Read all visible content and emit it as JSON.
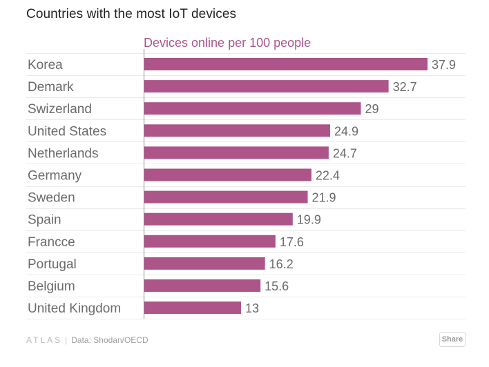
{
  "title": "Countries with the most IoT devices",
  "footer": {
    "logo_text": "ATLAS",
    "separator": "|",
    "source": "Data: Shodan/OECD",
    "share_label": "Share"
  },
  "colors": {
    "bar": "#ad5489",
    "series_label": "#ad5489",
    "category_text": "#6b6b6b",
    "value_text": "#6b6b6b",
    "grid": "#ebebeb",
    "axis": "#888888"
  },
  "chart_data": {
    "type": "bar",
    "orientation": "horizontal",
    "title": "Countries with the most IoT devices",
    "series_label": "Devices online per 100 people",
    "categories": [
      "Korea",
      "Demark",
      "Swizerland",
      "United States",
      "Netherlands",
      "Germany",
      "Sweden",
      "Spain",
      "Francce",
      "Portugal",
      "Belgium",
      "United Kingdom"
    ],
    "value_labels": [
      "37.9",
      "32.7",
      "29",
      "24.9",
      "24.7",
      "22.4",
      "21.9",
      "19.9",
      "17.6",
      "16.2",
      "15.6",
      "13"
    ],
    "series": [
      {
        "name": "Devices online per 100 people",
        "values": [
          37.9,
          32.7,
          29,
          24.9,
          24.7,
          22.4,
          21.9,
          19.9,
          17.6,
          16.2,
          15.6,
          13
        ]
      }
    ],
    "xlim": [
      0,
      37.9
    ],
    "grid": true,
    "legend": "none"
  }
}
